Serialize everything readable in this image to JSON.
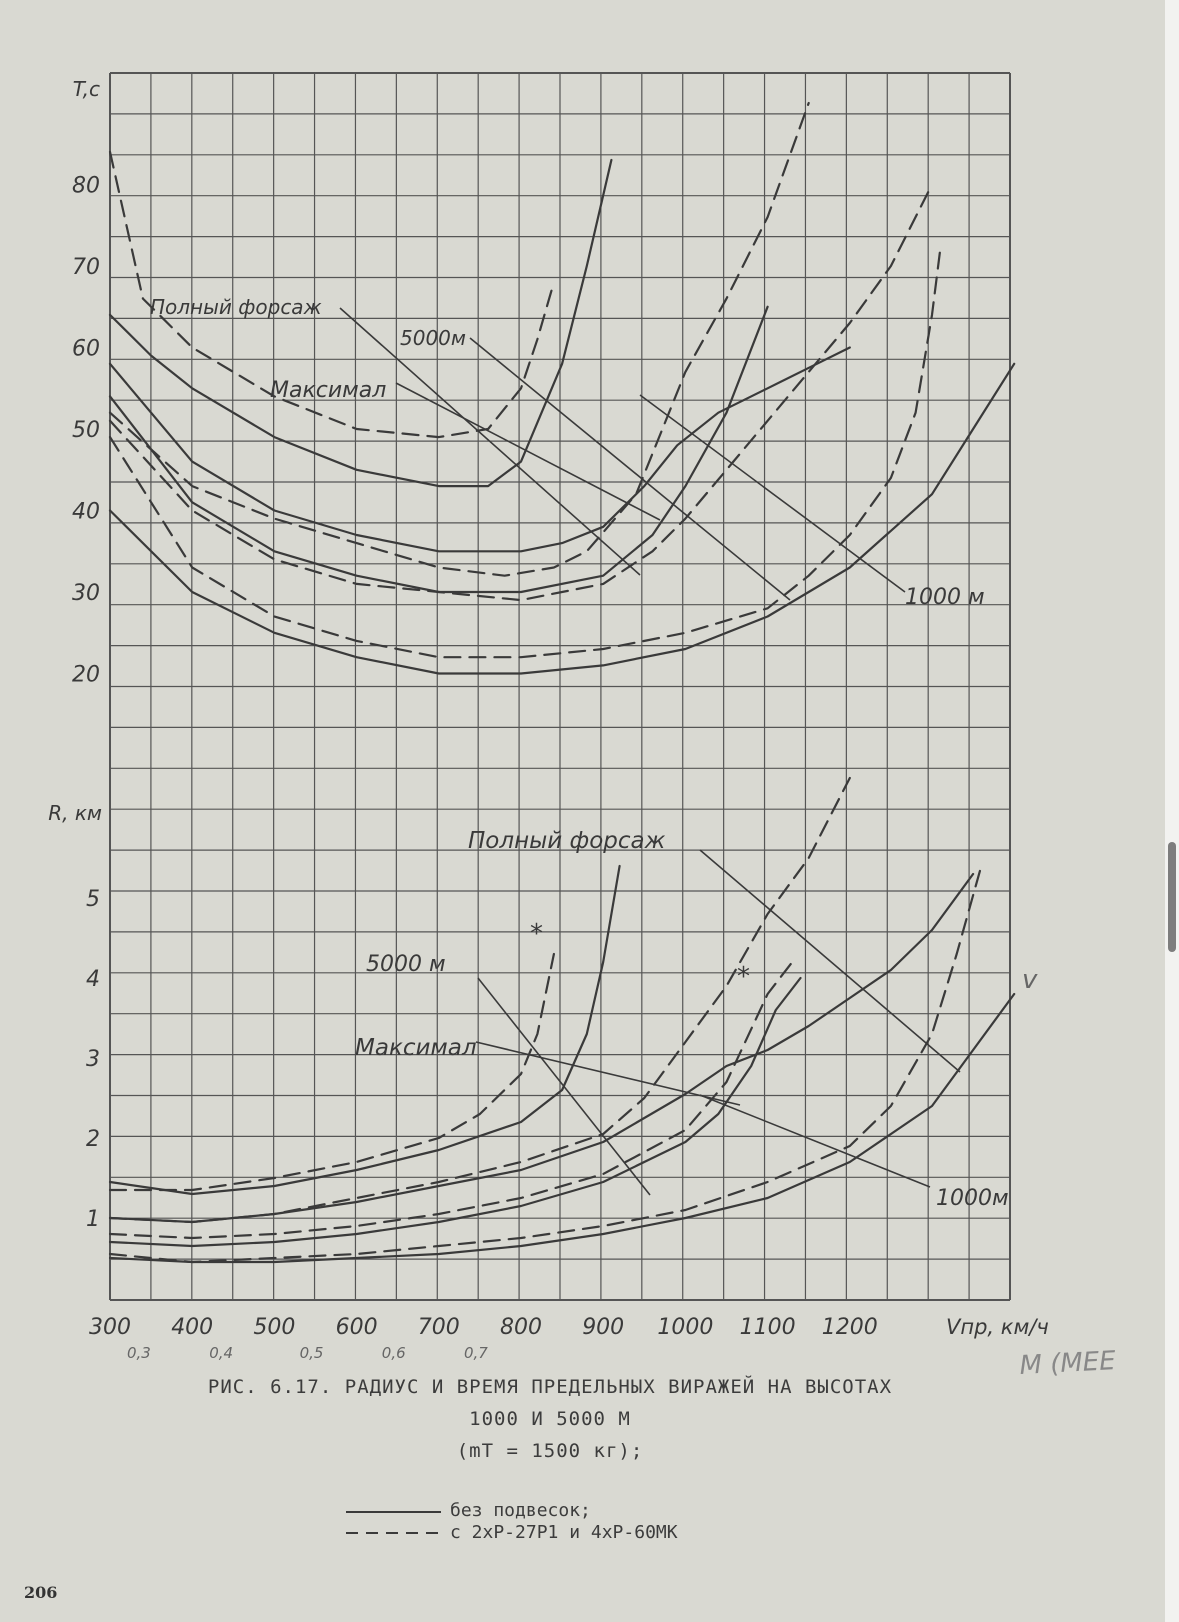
{
  "chart_data": [
    {
      "type": "line",
      "panel": "top",
      "ylabel": "T,c",
      "x_ticks": [
        300,
        400,
        500,
        600,
        700,
        800,
        900,
        1000,
        1100,
        1200
      ],
      "y_ticks": [
        20,
        30,
        40,
        50,
        60,
        70,
        80
      ],
      "xlim": [
        300,
        1400
      ],
      "ylim": [
        10,
        90
      ],
      "grid": true,
      "annotations": [
        "Полный форсаж",
        "5000м",
        "Максимал",
        "1000 м"
      ],
      "series": [
        {
          "altitude": "5000м",
          "engine": "Полный форсаж",
          "style": "dashed",
          "x": [
            300,
            340,
            400,
            500,
            600,
            700,
            760,
            800,
            820,
            840
          ],
          "y": [
            84,
            66,
            60,
            54,
            50,
            49,
            50,
            55,
            61,
            68
          ]
        },
        {
          "altitude": "5000м",
          "engine": "Полный форсаж",
          "style": "solid",
          "x": [
            300,
            350,
            400,
            500,
            600,
            700,
            760,
            800,
            850,
            880,
            910
          ],
          "y": [
            64,
            59,
            55,
            49,
            45,
            43,
            43,
            46,
            58,
            70,
            83
          ]
        },
        {
          "altitude": "5000м",
          "engine": "Максимал",
          "style": "dashed",
          "x": [
            300,
            400,
            500,
            600,
            700,
            780,
            840,
            880,
            940,
            980,
            1000,
            1050,
            1100,
            1150
          ],
          "y": [
            52,
            43,
            39,
            36,
            33,
            32,
            33,
            35,
            42,
            52,
            57,
            66,
            76,
            90
          ]
        },
        {
          "altitude": "5000м",
          "engine": "Максимал",
          "style": "solid",
          "x": [
            300,
            400,
            500,
            600,
            700,
            800,
            850,
            900,
            950,
            990,
            1040,
            1100,
            1160,
            1200
          ],
          "y": [
            58,
            46,
            40,
            37,
            35,
            35,
            36,
            38,
            43,
            48,
            52,
            55,
            58,
            60
          ]
        },
        {
          "altitude": "1000 м",
          "engine": "Полный форсаж",
          "style": "solid",
          "x": [
            300,
            400,
            500,
            600,
            700,
            800,
            900,
            960,
            1000,
            1050,
            1100
          ],
          "y": [
            54,
            41,
            35,
            32,
            30,
            30,
            32,
            37,
            43,
            52,
            65
          ]
        },
        {
          "altitude": "1000 м",
          "engine": "Полный форсаж",
          "style": "dashed",
          "x": [
            300,
            400,
            500,
            600,
            700,
            800,
            900,
            960,
            1000,
            1050,
            1100,
            1150,
            1200,
            1250,
            1300
          ],
          "y": [
            51,
            40,
            34,
            31,
            30,
            29,
            31,
            35,
            39,
            45,
            51,
            57,
            63,
            70,
            80
          ]
        },
        {
          "altitude": "1000 м",
          "engine": "Максимал",
          "style": "dashed",
          "x": [
            300,
            400,
            500,
            600,
            700,
            800,
            900,
            1000,
            1100,
            1150,
            1200,
            1250,
            1280,
            1300,
            1310
          ],
          "y": [
            49,
            33,
            27,
            24,
            22,
            22,
            23,
            25,
            28,
            32,
            37,
            44,
            52,
            64,
            72
          ]
        },
        {
          "altitude": "1000 м",
          "engine": "Максимал",
          "style": "solid",
          "x": [
            300,
            400,
            500,
            600,
            700,
            800,
            900,
            1000,
            1100,
            1200,
            1300,
            1350,
            1400
          ],
          "y": [
            40,
            30,
            25,
            22,
            20,
            20,
            21,
            23,
            27,
            33,
            42,
            50,
            58
          ]
        }
      ]
    },
    {
      "type": "line",
      "panel": "bottom",
      "ylabel": "R, км",
      "xlabel": "Vпр, км/ч",
      "x_ticks": [
        300,
        400,
        500,
        600,
        700,
        800,
        900,
        1000,
        1100,
        1200
      ],
      "mach_ticks": [
        "0,3",
        "0,4",
        "0,5",
        "0,6",
        "0,7"
      ],
      "y_ticks": [
        1,
        2,
        3,
        4,
        5
      ],
      "xlim": [
        300,
        1400
      ],
      "ylim": [
        0,
        6
      ],
      "grid": true,
      "annotations": [
        "Полный форсаж",
        "5000 м",
        "Максимал",
        "1000м",
        "*",
        "*",
        "*",
        "v"
      ],
      "series": [
        {
          "altitude": "5000 м",
          "engine": "Максимал",
          "style": "dashed",
          "x": [
            300,
            400,
            500,
            600,
            700,
            750,
            800,
            820,
            840
          ],
          "y": [
            1.35,
            1.35,
            1.5,
            1.7,
            2.0,
            2.3,
            2.8,
            3.3,
            4.3
          ]
        },
        {
          "altitude": "5000 м",
          "engine": "Максимал",
          "style": "solid",
          "x": [
            300,
            400,
            500,
            600,
            700,
            800,
            850,
            880,
            900,
            920
          ],
          "y": [
            1.45,
            1.3,
            1.4,
            1.6,
            1.85,
            2.2,
            2.6,
            3.3,
            4.2,
            5.4
          ]
        },
        {
          "altitude": "5000 м",
          "engine": "Полный форсаж",
          "style": "dashed",
          "x": [
            300,
            400,
            500,
            600,
            700,
            800,
            900,
            950,
            1000,
            1050,
            1100,
            1150,
            1200
          ],
          "y": [
            1.0,
            0.95,
            1.05,
            1.25,
            1.45,
            1.7,
            2.05,
            2.5,
            3.2,
            3.9,
            4.8,
            5.5,
            6.5
          ]
        },
        {
          "altitude": "5000 м",
          "engine": "Полный форсаж",
          "style": "solid",
          "x": [
            300,
            400,
            500,
            600,
            700,
            800,
            900,
            1000,
            1050,
            1100,
            1150,
            1200,
            1250,
            1300,
            1350
          ],
          "y": [
            1.0,
            0.95,
            1.05,
            1.2,
            1.4,
            1.6,
            1.95,
            2.55,
            2.9,
            3.1,
            3.4,
            3.75,
            4.1,
            4.6,
            5.3
          ]
        },
        {
          "altitude": "1000м",
          "engine": "Максимал",
          "style": "dashed",
          "x": [
            300,
            400,
            500,
            600,
            700,
            800,
            900,
            1000,
            1050,
            1100,
            1130
          ],
          "y": [
            0.8,
            0.75,
            0.8,
            0.9,
            1.05,
            1.25,
            1.55,
            2.1,
            2.7,
            3.8,
            4.2
          ]
        },
        {
          "altitude": "1000м",
          "engine": "Максимал",
          "style": "solid",
          "x": [
            300,
            400,
            500,
            600,
            700,
            800,
            900,
            1000,
            1040,
            1080,
            1110,
            1140
          ],
          "y": [
            0.7,
            0.65,
            0.7,
            0.8,
            0.95,
            1.15,
            1.45,
            1.95,
            2.3,
            2.9,
            3.6,
            4.0
          ]
        },
        {
          "altitude": "1000м",
          "engine": "Полный форсаж",
          "style": "dashed",
          "x": [
            300,
            400,
            500,
            600,
            700,
            800,
            900,
            1000,
            1100,
            1200,
            1250,
            1300,
            1330,
            1360
          ],
          "y": [
            0.55,
            0.45,
            0.5,
            0.55,
            0.65,
            0.75,
            0.9,
            1.1,
            1.45,
            1.9,
            2.4,
            3.3,
            4.3,
            5.4
          ]
        },
        {
          "altitude": "1000м",
          "engine": "Полный форсаж",
          "style": "solid",
          "x": [
            300,
            400,
            500,
            600,
            700,
            800,
            900,
            1000,
            1100,
            1200,
            1300,
            1350,
            1400
          ],
          "y": [
            0.5,
            0.45,
            0.45,
            0.5,
            0.55,
            0.65,
            0.8,
            1.0,
            1.25,
            1.7,
            2.4,
            3.1,
            3.8
          ]
        }
      ]
    }
  ],
  "handwritten_annotation": "M (МЕЕ",
  "caption": {
    "line1": "РИС. 6.17. РАДИУС И ВРЕМЯ ПРЕДЕЛЬНЫХ ВИРАЖЕЙ НА ВЫСОТАХ",
    "line2": "1000 И 5000 М",
    "line3": "(mT = 1500 кг);"
  },
  "legend": [
    {
      "style": "solid",
      "label": "без подвесок;"
    },
    {
      "style": "dashed",
      "label": "с 2xP-27P1 и 4xP-60МК"
    }
  ],
  "page_number": "206",
  "colors": {
    "paper": "#d9d9d2",
    "ink": "#3a3a3a",
    "grid": "#555555"
  }
}
